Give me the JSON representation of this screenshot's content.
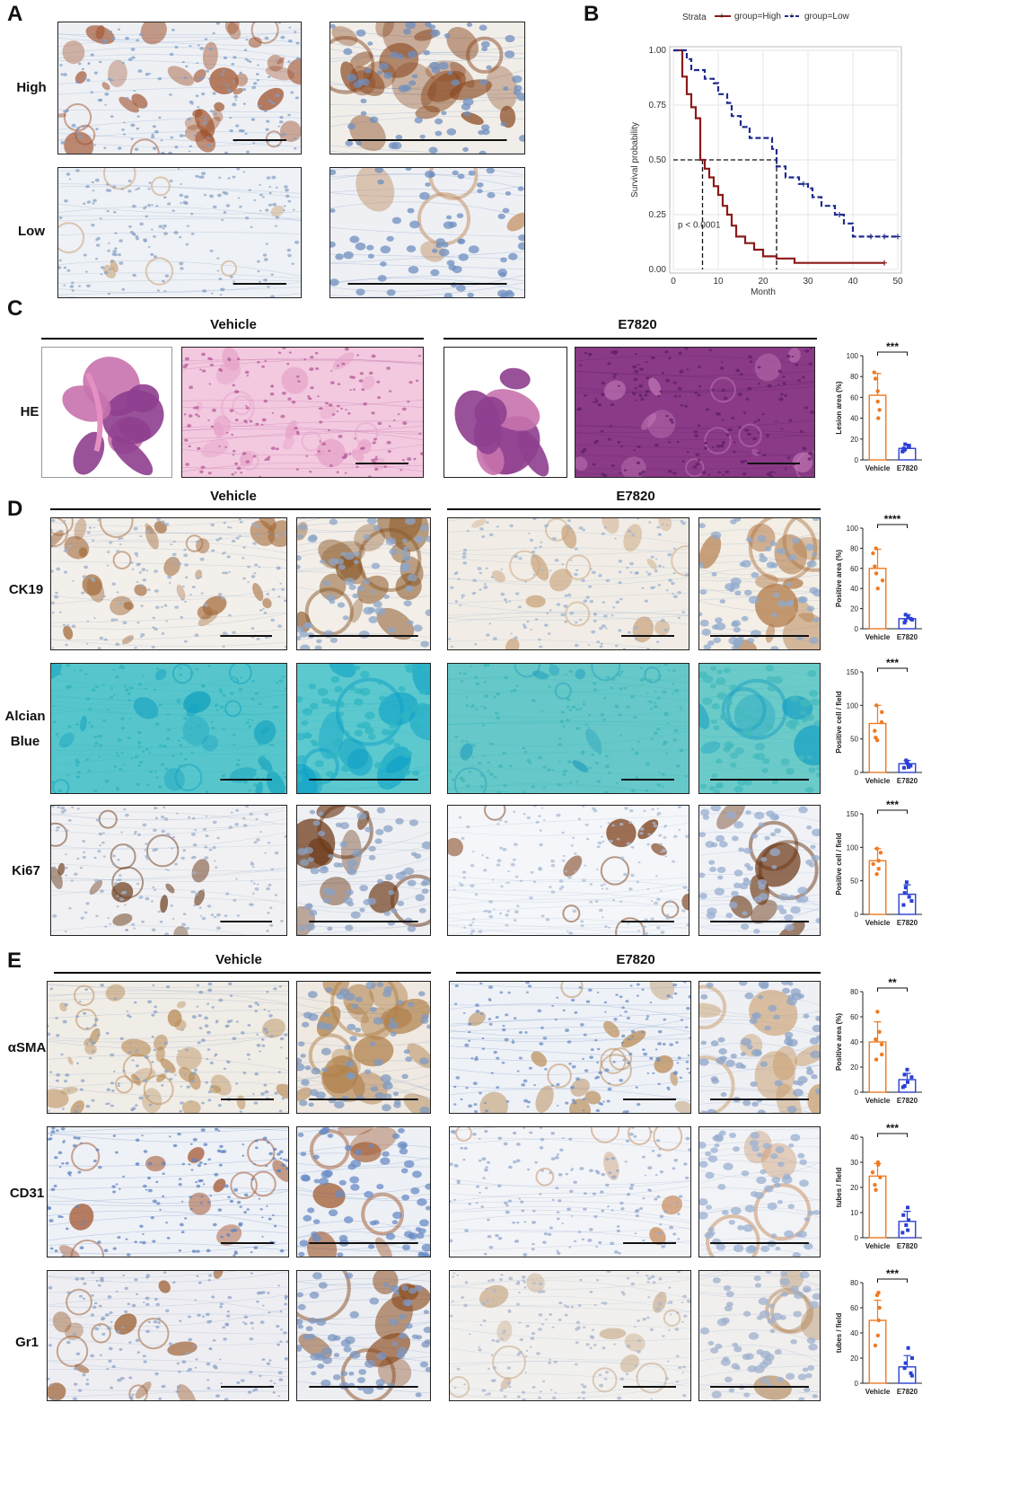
{
  "panels": {
    "A": {
      "letter": "A",
      "rows": [
        "High",
        "Low"
      ]
    },
    "B": {
      "letter": "B"
    },
    "C": {
      "letter": "C",
      "groups": [
        "Vehicle",
        "E7820"
      ],
      "rows": [
        "HE"
      ]
    },
    "D": {
      "letter": "D",
      "groups": [
        "Vehicle",
        "E7820"
      ],
      "rows": [
        "CK19",
        "Alcian",
        "Blue",
        "Ki67"
      ]
    },
    "E": {
      "letter": "E",
      "groups": [
        "Vehicle",
        "E7820"
      ],
      "rows": [
        "αSMA",
        "CD31",
        "Gr1"
      ]
    }
  },
  "colors": {
    "high": "#8b1a1a",
    "low": "#1f2a8c",
    "vehicle": "#f07a22",
    "e7820": "#2a3fd6",
    "dab_brown": "#9a5a2a",
    "hematoxylin": "#7f9fc8",
    "he_pink": "#d98ab8",
    "he_purple": "#8a3a8a",
    "alcian": "#3ec0c8"
  },
  "chart_data": [
    {
      "id": "km",
      "type": "line",
      "legend_title": "Strata",
      "legend_position": "top",
      "xlabel": "Month",
      "ylabel": "Survival probability",
      "xlim": [
        0,
        50
      ],
      "ylim": [
        0,
        1
      ],
      "x_ticks": [
        "0",
        "10",
        "20",
        "30",
        "40",
        "50"
      ],
      "y_ticks": [
        "0.00",
        "0.25",
        "0.50",
        "0.75",
        "1.00"
      ],
      "annotation": "p < 0.0001",
      "series": [
        {
          "name": "group=High",
          "color": "#8b1a1a",
          "style": "solid",
          "points": [
            [
              0,
              1.0
            ],
            [
              2,
              1.0
            ],
            [
              2,
              0.88
            ],
            [
              3,
              0.88
            ],
            [
              3,
              0.8
            ],
            [
              4,
              0.8
            ],
            [
              4,
              0.74
            ],
            [
              5,
              0.74
            ],
            [
              5,
              0.69
            ],
            [
              6,
              0.69
            ],
            [
              6,
              0.5
            ],
            [
              7,
              0.5
            ],
            [
              7,
              0.46
            ],
            [
              8,
              0.46
            ],
            [
              8,
              0.42
            ],
            [
              9,
              0.42
            ],
            [
              9,
              0.38
            ],
            [
              10,
              0.38
            ],
            [
              10,
              0.34
            ],
            [
              11,
              0.34
            ],
            [
              11,
              0.29
            ],
            [
              12,
              0.29
            ],
            [
              12,
              0.25
            ],
            [
              13,
              0.25
            ],
            [
              13,
              0.2
            ],
            [
              14,
              0.2
            ],
            [
              14,
              0.15
            ],
            [
              16,
              0.15
            ],
            [
              16,
              0.12
            ],
            [
              18,
              0.12
            ],
            [
              18,
              0.09
            ],
            [
              20,
              0.09
            ],
            [
              20,
              0.06
            ],
            [
              23,
              0.06
            ],
            [
              23,
              0.05
            ],
            [
              27,
              0.05
            ],
            [
              27,
              0.03
            ],
            [
              47,
              0.03
            ]
          ],
          "censored_x": [
            47
          ]
        },
        {
          "name": "group=Low",
          "color": "#1f2a8c",
          "style": "dashed",
          "points": [
            [
              0,
              1.0
            ],
            [
              3,
              1.0
            ],
            [
              3,
              0.96
            ],
            [
              4,
              0.96
            ],
            [
              4,
              0.91
            ],
            [
              7,
              0.91
            ],
            [
              7,
              0.87
            ],
            [
              9,
              0.87
            ],
            [
              9,
              0.85
            ],
            [
              10,
              0.85
            ],
            [
              10,
              0.8
            ],
            [
              12,
              0.8
            ],
            [
              12,
              0.76
            ],
            [
              13,
              0.76
            ],
            [
              13,
              0.7
            ],
            [
              15,
              0.7
            ],
            [
              15,
              0.65
            ],
            [
              17,
              0.65
            ],
            [
              17,
              0.6
            ],
            [
              22,
              0.6
            ],
            [
              22,
              0.55
            ],
            [
              23,
              0.55
            ],
            [
              23,
              0.47
            ],
            [
              25,
              0.47
            ],
            [
              25,
              0.42
            ],
            [
              28,
              0.42
            ],
            [
              28,
              0.39
            ],
            [
              30,
              0.39
            ],
            [
              30,
              0.37
            ],
            [
              31,
              0.37
            ],
            [
              31,
              0.33
            ],
            [
              33,
              0.33
            ],
            [
              33,
              0.29
            ],
            [
              36,
              0.29
            ],
            [
              36,
              0.25
            ],
            [
              38,
              0.25
            ],
            [
              38,
              0.21
            ],
            [
              40,
              0.21
            ],
            [
              40,
              0.15
            ],
            [
              50,
              0.15
            ]
          ],
          "censored_x": [
            29,
            37,
            44,
            47,
            50
          ]
        }
      ],
      "median_lines": [
        6.5,
        23
      ]
    },
    {
      "id": "C-lesion",
      "type": "bar",
      "categories": [
        "Vehicle",
        "E7820"
      ],
      "values": [
        62,
        11
      ],
      "errors": [
        21,
        4
      ],
      "points": [
        [
          78,
          84,
          66,
          56,
          48,
          40
        ],
        [
          15,
          13,
          11,
          9,
          8,
          10
        ]
      ],
      "ylabel": "Lesion area (%)",
      "ylim": [
        0,
        100
      ],
      "y_ticks": [
        0,
        20,
        40,
        60,
        80,
        100
      ],
      "significance": "***"
    },
    {
      "id": "D-ck19",
      "type": "bar",
      "categories": [
        "Vehicle",
        "E7820"
      ],
      "values": [
        60,
        10
      ],
      "errors": [
        19,
        4
      ],
      "points": [
        [
          80,
          75,
          62,
          55,
          48,
          40
        ],
        [
          14,
          12,
          10,
          9,
          8,
          6
        ]
      ],
      "ylabel": "Positive area (%)",
      "ylim": [
        0,
        100
      ],
      "y_ticks": [
        0,
        20,
        40,
        60,
        80,
        100
      ],
      "significance": "****"
    },
    {
      "id": "D-alcian",
      "type": "bar",
      "categories": [
        "Vehicle",
        "E7820"
      ],
      "values": [
        73,
        13
      ],
      "errors": [
        27,
        5
      ],
      "points": [
        [
          100,
          90,
          75,
          62,
          52,
          48
        ],
        [
          18,
          15,
          13,
          10,
          8,
          7
        ]
      ],
      "ylabel": "Positive cell / field",
      "ylim": [
        0,
        150
      ],
      "y_ticks": [
        0,
        50,
        100,
        150
      ],
      "significance": "***"
    },
    {
      "id": "D-ki67",
      "type": "bar",
      "categories": [
        "Vehicle",
        "E7820"
      ],
      "values": [
        80,
        30
      ],
      "errors": [
        18,
        14
      ],
      "points": [
        [
          98,
          92,
          80,
          75,
          68,
          60
        ],
        [
          48,
          40,
          32,
          26,
          20,
          14
        ]
      ],
      "ylabel": "Positive cell / field",
      "ylim": [
        0,
        150
      ],
      "y_ticks": [
        0,
        50,
        100,
        150
      ],
      "significance": "***"
    },
    {
      "id": "E-asma",
      "type": "bar",
      "categories": [
        "Vehicle",
        "E7820"
      ],
      "values": [
        40,
        10
      ],
      "errors": [
        16,
        5
      ],
      "points": [
        [
          64,
          48,
          42,
          38,
          30,
          26
        ],
        [
          18,
          14,
          12,
          8,
          5,
          4
        ]
      ],
      "ylabel": "Positive area (%)",
      "ylim": [
        0,
        80
      ],
      "y_ticks": [
        0,
        20,
        40,
        60,
        80
      ],
      "significance": "**"
    },
    {
      "id": "E-cd31",
      "type": "bar",
      "categories": [
        "Vehicle",
        "E7820"
      ],
      "values": [
        24.5,
        6.5
      ],
      "errors": [
        5,
        4
      ],
      "points": [
        [
          30,
          29,
          26,
          24,
          21,
          19
        ],
        [
          12,
          9,
          7,
          5,
          3,
          2
        ]
      ],
      "ylabel": "tubes / field",
      "ylim": [
        0,
        40
      ],
      "y_ticks": [
        0,
        10,
        20,
        30,
        40
      ],
      "significance": "***"
    },
    {
      "id": "E-gr1",
      "type": "bar",
      "categories": [
        "Vehicle",
        "E7820"
      ],
      "values": [
        50,
        13
      ],
      "errors": [
        16,
        9
      ],
      "points": [
        [
          72,
          70,
          60,
          50,
          38,
          30
        ],
        [
          28,
          20,
          16,
          12,
          8,
          6
        ]
      ],
      "ylabel": "tubes / field",
      "ylim": [
        0,
        80
      ],
      "y_ticks": [
        0,
        20,
        40,
        60,
        80
      ],
      "significance": "***"
    }
  ]
}
